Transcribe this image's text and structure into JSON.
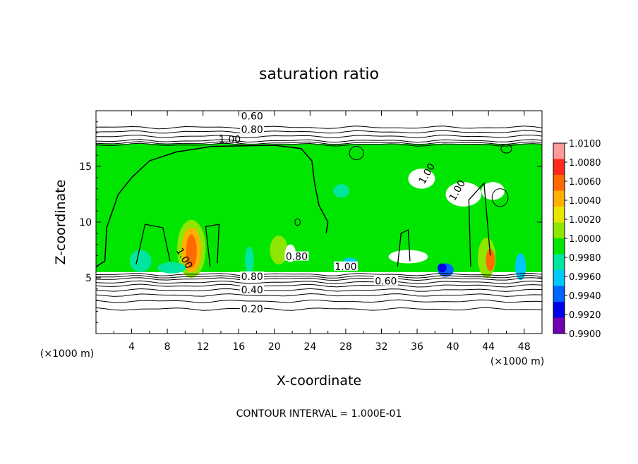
{
  "chart_data": {
    "type": "heatmap",
    "title": "saturation ratio",
    "xlabel": "X-coordinate",
    "ylabel": "Z-coordinate",
    "x_unit_left": "(×1000 m)",
    "x_unit_right": "(×1000 m)",
    "xlim": [
      0,
      50
    ],
    "ylim": [
      0,
      20
    ],
    "xticks": [
      4,
      8,
      12,
      16,
      20,
      24,
      28,
      32,
      36,
      40,
      44,
      48
    ],
    "yticks": [
      5,
      10,
      15
    ],
    "colorbar": {
      "levels": [
        "1.0100",
        "1.0080",
        "1.0060",
        "1.0040",
        "1.0020",
        "1.0000",
        "0.9980",
        "0.9960",
        "0.9940",
        "0.9920",
        "0.9900"
      ],
      "colors": [
        "#ff9a9a",
        "#ff2a1e",
        "#ff6a00",
        "#ffb000",
        "#e6e600",
        "#8fe600",
        "#00e600",
        "#00e6a0",
        "#00c8ff",
        "#0064ff",
        "#0000e6",
        "#7000b0"
      ]
    },
    "contour_labels": [
      "0.60",
      "0.80",
      "1.00",
      "1.00",
      "1.00",
      "1.00",
      "1.00",
      "0.80",
      "0.40",
      "0.20",
      "0.60",
      "0.80"
    ],
    "footnote": "CONTOUR INTERVAL = 1.000E-01"
  }
}
